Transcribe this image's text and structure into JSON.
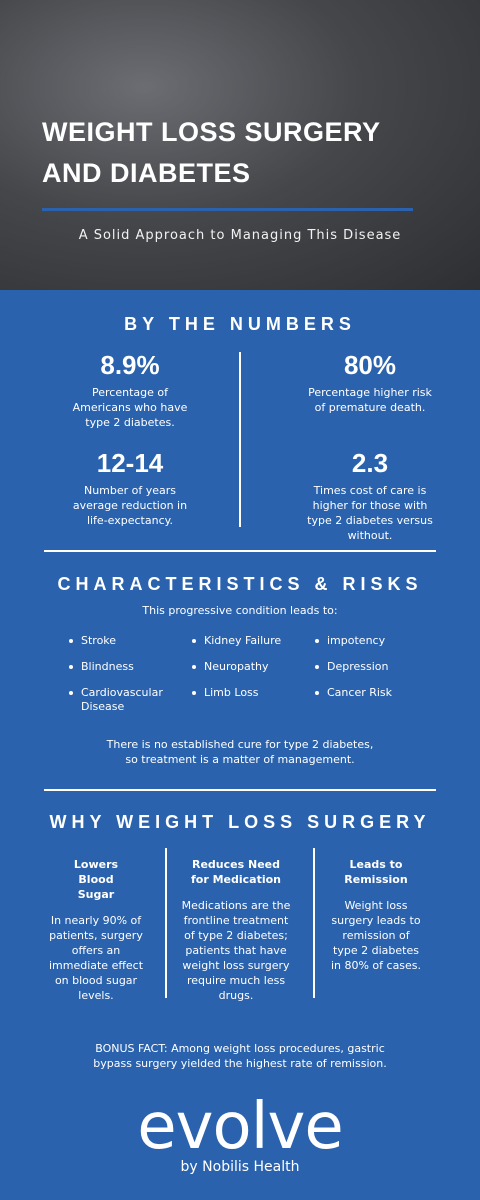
{
  "header": {
    "title": "WEIGHT LOSS SURGERY AND DIABETES",
    "subtitle": "A Solid Approach to Managing This Disease"
  },
  "numbers": {
    "heading": "BY THE NUMBERS",
    "stats": [
      {
        "value": "8.9%",
        "text": "Percentage of Americans who have type 2 diabetes."
      },
      {
        "value": "80%",
        "text": "Percentage higher risk of premature death."
      },
      {
        "value": "12-14",
        "text": "Number of years average reduction in life-expectancy."
      },
      {
        "value": "2.3",
        "text": "Times cost of care is higher for those with type 2 diabetes versus without."
      }
    ]
  },
  "risks": {
    "heading": "CHARACTERISTICS & RISKS",
    "intro": "This progressive condition leads to:",
    "items": [
      "Stroke",
      "Kidney Failure",
      "impotency",
      "Blindness",
      "Neuropathy",
      "Depression",
      "Cardiovascular Disease",
      "Limb Loss",
      "Cancer Risk"
    ],
    "note": "There is no established cure for type 2 diabetes, so treatment is a matter of management."
  },
  "reasons": {
    "heading": "WHY WEIGHT LOSS SURGERY",
    "columns": [
      {
        "title": "Lowers Blood Sugar",
        "text": "In nearly 90% of patients, surgery offers an immediate effect on blood sugar levels."
      },
      {
        "title": "Reduces Need for Medication",
        "text": "Medications are the frontline treatment of type 2 diabetes; patients that have weight loss surgery require much less drugs."
      },
      {
        "title": "Leads to Remission",
        "text": "Weight loss surgery leads to remission of type 2 diabetes in 80% of cases."
      }
    ]
  },
  "bonus": "BONUS FACT: Among weight loss procedures, gastric bypass surgery yielded the highest rate of remission.",
  "logo": {
    "name": "evolve",
    "tagline": "by Nobilis Health"
  }
}
